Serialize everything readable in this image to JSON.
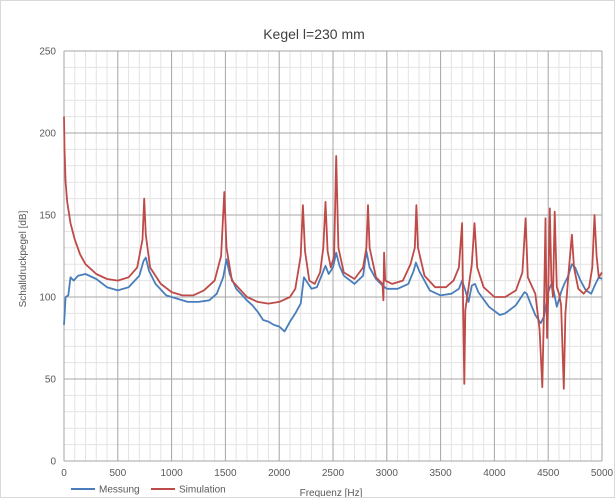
{
  "chart_data": {
    "type": "line",
    "title": "Kegel l=230 mm",
    "xlabel": "Frequenz [Hz]",
    "ylabel": "Schalldruckpegel [dB]",
    "xlim": [
      0,
      5000
    ],
    "ylim": [
      0,
      250
    ],
    "x_ticks": [
      0,
      500,
      1000,
      1500,
      2000,
      2500,
      3000,
      3500,
      4000,
      4500,
      5000
    ],
    "y_ticks": [
      0,
      50,
      100,
      150,
      200,
      250
    ],
    "grid": "major and minor",
    "legend_position": "bottom-left",
    "series": [
      {
        "name": "Messung",
        "color": "#4a7ebb",
        "points": [
          [
            0,
            83
          ],
          [
            15,
            100
          ],
          [
            40,
            101
          ],
          [
            60,
            112
          ],
          [
            90,
            110
          ],
          [
            130,
            113
          ],
          [
            200,
            114
          ],
          [
            300,
            111
          ],
          [
            400,
            106
          ],
          [
            500,
            104
          ],
          [
            600,
            106
          ],
          [
            700,
            113
          ],
          [
            740,
            122
          ],
          [
            760,
            124
          ],
          [
            790,
            116
          ],
          [
            850,
            108
          ],
          [
            950,
            101
          ],
          [
            1050,
            99
          ],
          [
            1150,
            97
          ],
          [
            1250,
            97
          ],
          [
            1350,
            98
          ],
          [
            1420,
            102
          ],
          [
            1480,
            112
          ],
          [
            1510,
            123
          ],
          [
            1540,
            114
          ],
          [
            1600,
            105
          ],
          [
            1700,
            98
          ],
          [
            1750,
            95
          ],
          [
            1800,
            91
          ],
          [
            1850,
            86
          ],
          [
            1900,
            85
          ],
          [
            1950,
            83
          ],
          [
            2000,
            82
          ],
          [
            2050,
            79
          ],
          [
            2100,
            85
          ],
          [
            2150,
            90
          ],
          [
            2200,
            96
          ],
          [
            2230,
            112
          ],
          [
            2260,
            109
          ],
          [
            2300,
            105
          ],
          [
            2350,
            106
          ],
          [
            2400,
            114
          ],
          [
            2430,
            119
          ],
          [
            2460,
            114
          ],
          [
            2500,
            118
          ],
          [
            2530,
            127
          ],
          [
            2560,
            119
          ],
          [
            2600,
            113
          ],
          [
            2700,
            108
          ],
          [
            2780,
            113
          ],
          [
            2810,
            128
          ],
          [
            2840,
            118
          ],
          [
            2900,
            111
          ],
          [
            2960,
            107
          ],
          [
            3000,
            105
          ],
          [
            3100,
            105
          ],
          [
            3200,
            108
          ],
          [
            3250,
            116
          ],
          [
            3270,
            121
          ],
          [
            3300,
            116
          ],
          [
            3400,
            104
          ],
          [
            3500,
            101
          ],
          [
            3600,
            102
          ],
          [
            3670,
            105
          ],
          [
            3700,
            110
          ],
          [
            3730,
            104
          ],
          [
            3760,
            97
          ],
          [
            3790,
            107
          ],
          [
            3820,
            108
          ],
          [
            3850,
            103
          ],
          [
            3950,
            94
          ],
          [
            4050,
            89
          ],
          [
            4100,
            90
          ],
          [
            4200,
            95
          ],
          [
            4280,
            103
          ],
          [
            4300,
            102
          ],
          [
            4330,
            97
          ],
          [
            4380,
            89
          ],
          [
            4430,
            84
          ],
          [
            4460,
            88
          ],
          [
            4480,
            95
          ],
          [
            4500,
            103
          ],
          [
            4530,
            108
          ],
          [
            4550,
            104
          ],
          [
            4580,
            94
          ],
          [
            4620,
            103
          ],
          [
            4650,
            108
          ],
          [
            4680,
            112
          ],
          [
            4720,
            120
          ],
          [
            4750,
            118
          ],
          [
            4800,
            110
          ],
          [
            4850,
            104
          ],
          [
            4900,
            102
          ],
          [
            4940,
            108
          ],
          [
            4970,
            112
          ],
          [
            5000,
            111
          ]
        ]
      },
      {
        "name": "Simulation",
        "color": "#be4b48",
        "points": [
          [
            0,
            210
          ],
          [
            5,
            190
          ],
          [
            15,
            170
          ],
          [
            30,
            158
          ],
          [
            60,
            145
          ],
          [
            100,
            135
          ],
          [
            150,
            126
          ],
          [
            200,
            120
          ],
          [
            300,
            114
          ],
          [
            400,
            111
          ],
          [
            500,
            110
          ],
          [
            600,
            112
          ],
          [
            680,
            118
          ],
          [
            730,
            135
          ],
          [
            745,
            160
          ],
          [
            760,
            138
          ],
          [
            800,
            118
          ],
          [
            900,
            108
          ],
          [
            1000,
            103
          ],
          [
            1100,
            101
          ],
          [
            1200,
            101
          ],
          [
            1300,
            104
          ],
          [
            1400,
            110
          ],
          [
            1460,
            125
          ],
          [
            1490,
            164
          ],
          [
            1510,
            130
          ],
          [
            1560,
            110
          ],
          [
            1700,
            100
          ],
          [
            1800,
            97
          ],
          [
            1900,
            96
          ],
          [
            2000,
            97
          ],
          [
            2100,
            100
          ],
          [
            2150,
            105
          ],
          [
            2200,
            125
          ],
          [
            2220,
            156
          ],
          [
            2240,
            128
          ],
          [
            2280,
            110
          ],
          [
            2330,
            108
          ],
          [
            2380,
            115
          ],
          [
            2410,
            130
          ],
          [
            2430,
            158
          ],
          [
            2450,
            128
          ],
          [
            2480,
            118
          ],
          [
            2510,
            125
          ],
          [
            2530,
            186
          ],
          [
            2550,
            130
          ],
          [
            2600,
            115
          ],
          [
            2700,
            111
          ],
          [
            2780,
            118
          ],
          [
            2810,
            130
          ],
          [
            2825,
            156
          ],
          [
            2840,
            130
          ],
          [
            2900,
            112
          ],
          [
            2960,
            108
          ],
          [
            2968,
            98
          ],
          [
            2975,
            127
          ],
          [
            2985,
            110
          ],
          [
            3050,
            108
          ],
          [
            3150,
            110
          ],
          [
            3220,
            120
          ],
          [
            3260,
            130
          ],
          [
            3275,
            156
          ],
          [
            3290,
            130
          ],
          [
            3350,
            113
          ],
          [
            3450,
            106
          ],
          [
            3550,
            106
          ],
          [
            3620,
            110
          ],
          [
            3670,
            118
          ],
          [
            3700,
            145
          ],
          [
            3710,
            90
          ],
          [
            3720,
            47
          ],
          [
            3730,
            92
          ],
          [
            3760,
            106
          ],
          [
            3790,
            120
          ],
          [
            3815,
            145
          ],
          [
            3840,
            118
          ],
          [
            3900,
            106
          ],
          [
            4000,
            100
          ],
          [
            4100,
            100
          ],
          [
            4200,
            104
          ],
          [
            4260,
            115
          ],
          [
            4290,
            148
          ],
          [
            4310,
            112
          ],
          [
            4380,
            102
          ],
          [
            4420,
            80
          ],
          [
            4445,
            45
          ],
          [
            4460,
            90
          ],
          [
            4475,
            148
          ],
          [
            4480,
            120
          ],
          [
            4490,
            75
          ],
          [
            4500,
            100
          ],
          [
            4515,
            154
          ],
          [
            4530,
            110
          ],
          [
            4545,
            100
          ],
          [
            4560,
            152
          ],
          [
            4580,
            106
          ],
          [
            4600,
            102
          ],
          [
            4620,
            95
          ],
          [
            4645,
            44
          ],
          [
            4660,
            90
          ],
          [
            4690,
            115
          ],
          [
            4720,
            138
          ],
          [
            4740,
            118
          ],
          [
            4780,
            105
          ],
          [
            4830,
            102
          ],
          [
            4880,
            106
          ],
          [
            4910,
            118
          ],
          [
            4930,
            150
          ],
          [
            4950,
            125
          ],
          [
            4970,
            112
          ],
          [
            5000,
            115
          ]
        ]
      }
    ]
  }
}
